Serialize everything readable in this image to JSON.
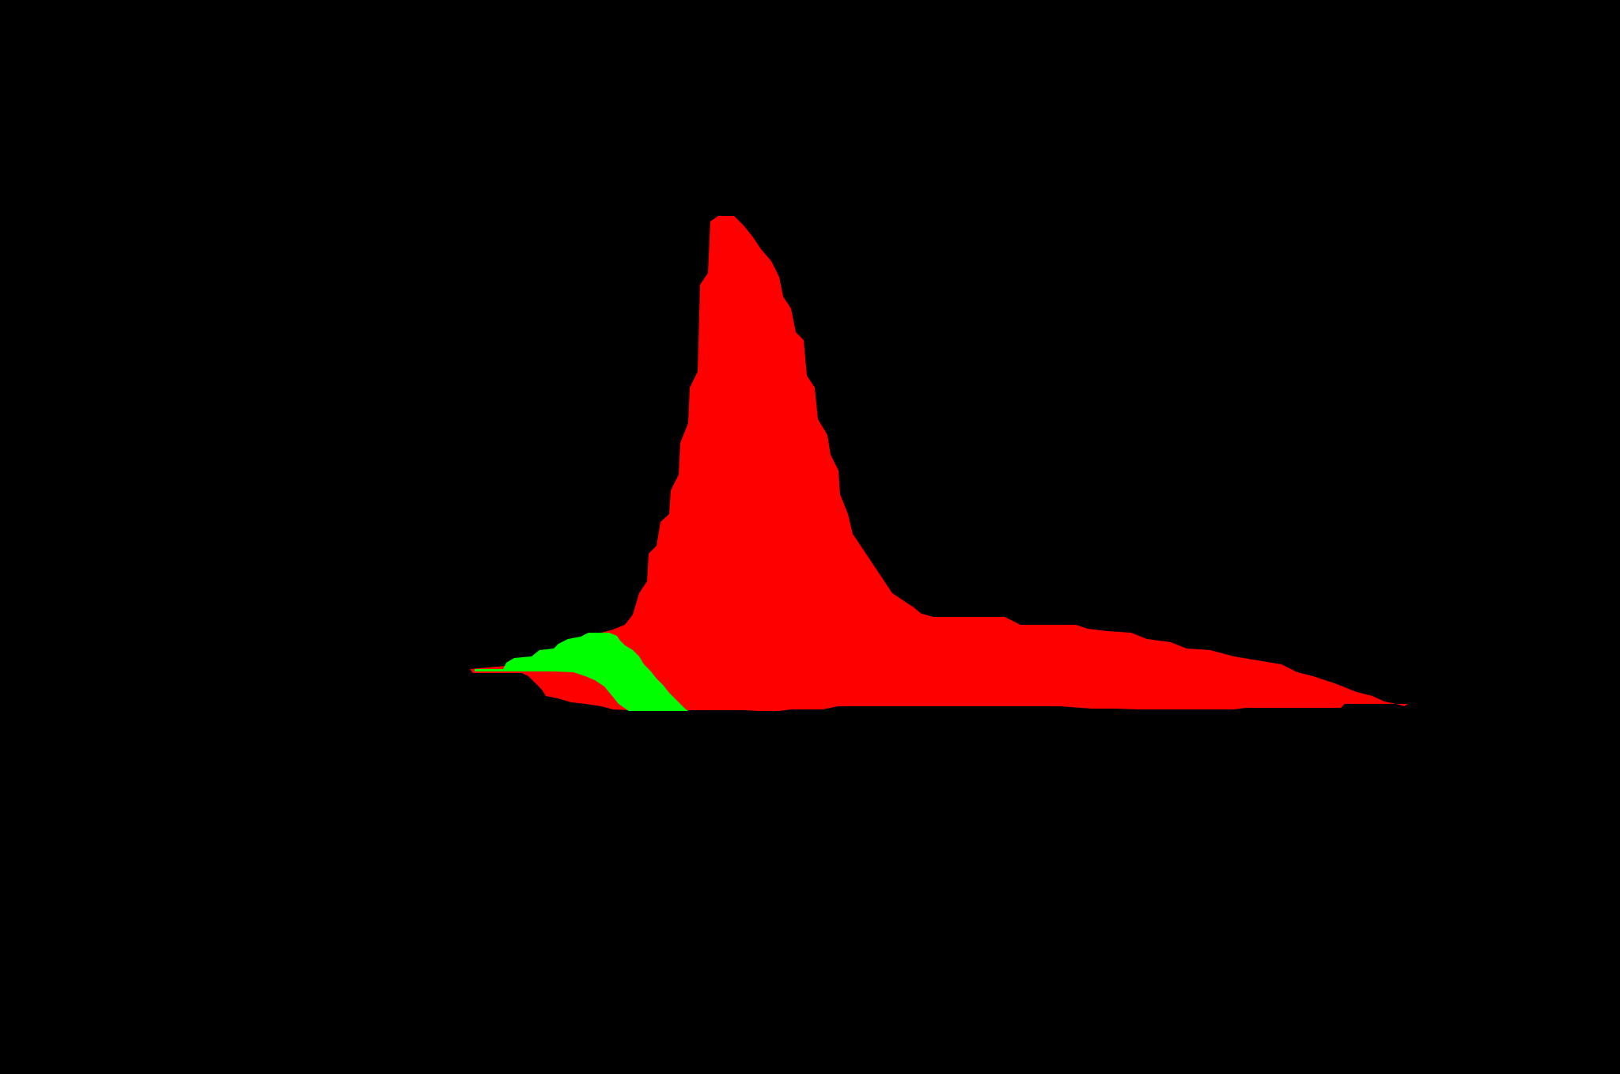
{
  "background_color": "#000000",
  "regions": [
    {
      "name": "red-region",
      "color": "#ff0000"
    },
    {
      "name": "green-region",
      "color": "#00ff00"
    }
  ]
}
